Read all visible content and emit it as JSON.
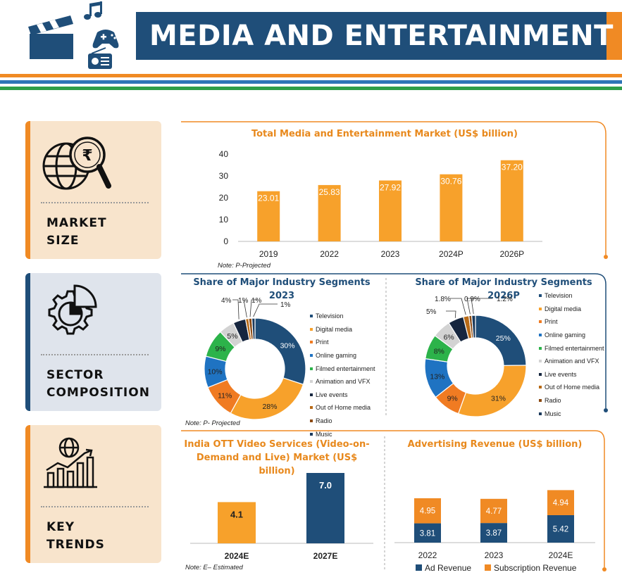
{
  "header": {
    "title": "MEDIA AND ENTERTAINMENT",
    "icons": [
      "clapperboard-icon",
      "music-note-icon",
      "gamepad-icon",
      "radio-icon"
    ],
    "colors": {
      "navy": "#1f4e79",
      "orange": "#f08a24",
      "blue": "#2e75b6",
      "green": "#2e9e48"
    }
  },
  "sections": [
    {
      "label_line1": "MARKET",
      "label_line2": "SIZE",
      "icon": "globe-magnifier-rupee-icon",
      "color": "#f08a24"
    },
    {
      "label_line1": "SECTOR",
      "label_line2": "COMPOSITION",
      "icon": "gear-pie-chart-icon",
      "color": "#1f4e79"
    },
    {
      "label_line1": "KEY",
      "label_line2": "TRENDS",
      "icon": "globe-growth-chart-icon",
      "color": "#f08a24"
    }
  ],
  "chart_data": [
    {
      "type": "bar",
      "title": "Total Media and Entertainment Market (US$ billion)",
      "categories": [
        "2019",
        "2022",
        "2023",
        "2024P",
        "2026P"
      ],
      "values": [
        23.01,
        25.83,
        27.92,
        30.76,
        37.2
      ],
      "value_labels": [
        "23.01",
        "25.83",
        "27.92",
        "30.76",
        "37.20"
      ],
      "ylim": [
        0,
        40
      ],
      "yticks": [
        0,
        10,
        20,
        30,
        40
      ],
      "color": "#f7a12b",
      "note": "Note: P-Projected"
    },
    {
      "type": "pie",
      "title": "Share of Major Industry Segments 2023",
      "labels": [
        "Television",
        "Digital media",
        "Print",
        "Online gaming",
        "Filmed entertainment",
        "Animation and VFX",
        "Live events",
        "Out of Home media",
        "Radio",
        "Music"
      ],
      "values": [
        30,
        28,
        11,
        10,
        9,
        5,
        4,
        1,
        1,
        1
      ],
      "value_labels": [
        "30%",
        "28%",
        "11%",
        "10%",
        "9%",
        "5%",
        "4%",
        "1%",
        "1%",
        "1%"
      ],
      "colors": [
        "#1f4e79",
        "#f7a12b",
        "#f07b22",
        "#1f73c2",
        "#2cb34a",
        "#d3d3d3",
        "#16263f",
        "#b86a16",
        "#8c4a12",
        "#1b3a5c"
      ],
      "note": "Note: P- Projected"
    },
    {
      "type": "pie",
      "title": "Share of Major Industry Segments 2026P",
      "labels": [
        "Television",
        "Digital media",
        "Print",
        "Online gaming",
        "Filmed entertainment",
        "Animation and VFX",
        "Live events",
        "Out of Home media",
        "Radio",
        "Music"
      ],
      "values": [
        25,
        31,
        9,
        13,
        8,
        6,
        5,
        1.8,
        0.9,
        1.2
      ],
      "value_labels": [
        "25%",
        "31%",
        "9%",
        "13%",
        "8%",
        "6%",
        "5%",
        "1.8%",
        "0.9%",
        "1.2%"
      ],
      "colors": [
        "#1f4e79",
        "#f7a12b",
        "#f07b22",
        "#1f73c2",
        "#2cb34a",
        "#d3d3d3",
        "#16263f",
        "#b86a16",
        "#8c4a12",
        "#1b3a5c"
      ]
    },
    {
      "type": "bar",
      "title": "India OTT Video Services (Video-on-Demand and Live) Market (US$ billion)",
      "categories": [
        "2024E",
        "2027E"
      ],
      "values": [
        4.1,
        7.0
      ],
      "value_labels": [
        "4.1",
        "7.0"
      ],
      "colors": [
        "#f7a12b",
        "#1f4e79"
      ],
      "note": "Note: E– Estimated"
    },
    {
      "type": "bar",
      "stacked": true,
      "title": "Advertising Revenue (US$ billion)",
      "categories": [
        "2022",
        "2023",
        "2024E"
      ],
      "series": [
        {
          "name": "Ad Revenue",
          "values": [
            3.81,
            3.87,
            5.42
          ],
          "labels": [
            "3.81",
            "3.87",
            "5.42"
          ],
          "color": "#1f4e79"
        },
        {
          "name": "Subscription Revenue",
          "values": [
            4.95,
            4.77,
            4.94
          ],
          "labels": [
            "4.95",
            "4.77",
            "4.94"
          ],
          "color": "#f08a24"
        }
      ],
      "legend": "bottom"
    }
  ]
}
